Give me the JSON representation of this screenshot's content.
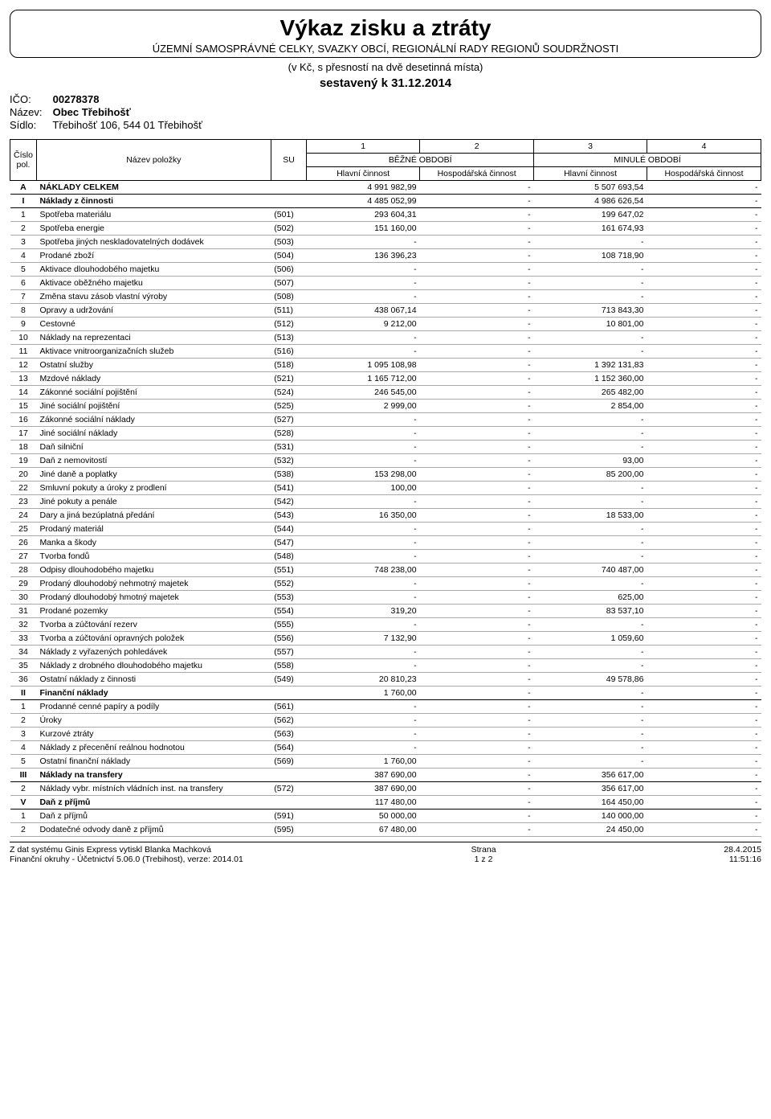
{
  "title": {
    "main": "Výkaz zisku a ztráty",
    "sub": "ÚZEMNÍ SAMOSPRÁVNÉ CELKY, SVAZKY OBCÍ, REGIONÁLNÍ RADY REGIONŮ SOUDRŽNOSTI",
    "precision": "(v Kč, s přesností na dvě desetinná místa)",
    "compiled": "sestavený k 31.12.2014"
  },
  "ident": {
    "ico_label": "IČO:",
    "ico": "00278378",
    "name_label": "Název:",
    "name": "Obec Třebihošť",
    "seat_label": "Sídlo:",
    "seat": "Třebihošť 106, 544 01 Třebihošť"
  },
  "header": {
    "cislo": "Číslo pol.",
    "nazev": "Název položky",
    "su": "SU",
    "c1": "1",
    "c2": "2",
    "c3": "3",
    "c4": "4",
    "bezne": "BĚŽNÉ OBDOBÍ",
    "minule": "MINULÉ OBDOBÍ",
    "hlavni": "Hlavní činnost",
    "hosp": "Hospodářská činnost"
  },
  "rows": [
    {
      "section": true,
      "num": "A",
      "name": "NÁKLADY CELKEM",
      "su": "",
      "v1": "4 991 982,99",
      "v2": "-",
      "v3": "5 507 693,54",
      "v4": "-"
    },
    {
      "section": true,
      "num": "I",
      "name": "Náklady z činnosti",
      "su": "",
      "v1": "4 485 052,99",
      "v2": "-",
      "v3": "4 986 626,54",
      "v4": "-"
    },
    {
      "num": "1",
      "name": "Spotřeba materiálu",
      "su": "(501)",
      "v1": "293 604,31",
      "v2": "-",
      "v3": "199 647,02",
      "v4": "-"
    },
    {
      "num": "2",
      "name": "Spotřeba energie",
      "su": "(502)",
      "v1": "151 160,00",
      "v2": "-",
      "v3": "161 674,93",
      "v4": "-"
    },
    {
      "num": "3",
      "name": "Spotřeba jiných neskladovatelných dodávek",
      "su": "(503)",
      "v1": "-",
      "v2": "-",
      "v3": "-",
      "v4": "-"
    },
    {
      "num": "4",
      "name": "Prodané zboží",
      "su": "(504)",
      "v1": "136 396,23",
      "v2": "-",
      "v3": "108 718,90",
      "v4": "-"
    },
    {
      "num": "5",
      "name": "Aktivace dlouhodobého majetku",
      "su": "(506)",
      "v1": "-",
      "v2": "-",
      "v3": "-",
      "v4": "-"
    },
    {
      "num": "6",
      "name": "Aktivace oběžného majetku",
      "su": "(507)",
      "v1": "-",
      "v2": "-",
      "v3": "-",
      "v4": "-"
    },
    {
      "num": "7",
      "name": "Změna stavu zásob vlastní výroby",
      "su": "(508)",
      "v1": "-",
      "v2": "-",
      "v3": "-",
      "v4": "-"
    },
    {
      "num": "8",
      "name": "Opravy a udržování",
      "su": "(511)",
      "v1": "438 067,14",
      "v2": "-",
      "v3": "713 843,30",
      "v4": "-"
    },
    {
      "num": "9",
      "name": "Cestovné",
      "su": "(512)",
      "v1": "9 212,00",
      "v2": "-",
      "v3": "10 801,00",
      "v4": "-"
    },
    {
      "num": "10",
      "name": "Náklady na reprezentaci",
      "su": "(513)",
      "v1": "-",
      "v2": "-",
      "v3": "-",
      "v4": "-"
    },
    {
      "num": "11",
      "name": "Aktivace vnitroorganizačních služeb",
      "su": "(516)",
      "v1": "-",
      "v2": "-",
      "v3": "-",
      "v4": "-"
    },
    {
      "num": "12",
      "name": "Ostatní služby",
      "su": "(518)",
      "v1": "1 095 108,98",
      "v2": "-",
      "v3": "1 392 131,83",
      "v4": "-"
    },
    {
      "num": "13",
      "name": "Mzdové náklady",
      "su": "(521)",
      "v1": "1 165 712,00",
      "v2": "-",
      "v3": "1 152 360,00",
      "v4": "-"
    },
    {
      "num": "14",
      "name": "Zákonné sociální pojištění",
      "su": "(524)",
      "v1": "246 545,00",
      "v2": "-",
      "v3": "265 482,00",
      "v4": "-"
    },
    {
      "num": "15",
      "name": "Jiné sociální pojištění",
      "su": "(525)",
      "v1": "2 999,00",
      "v2": "-",
      "v3": "2 854,00",
      "v4": "-"
    },
    {
      "num": "16",
      "name": "Zákonné sociální náklady",
      "su": "(527)",
      "v1": "-",
      "v2": "-",
      "v3": "-",
      "v4": "-"
    },
    {
      "num": "17",
      "name": "Jiné sociální náklady",
      "su": "(528)",
      "v1": "-",
      "v2": "-",
      "v3": "-",
      "v4": "-"
    },
    {
      "num": "18",
      "name": "Daň silniční",
      "su": "(531)",
      "v1": "-",
      "v2": "-",
      "v3": "-",
      "v4": "-"
    },
    {
      "num": "19",
      "name": "Daň z nemovitostí",
      "su": "(532)",
      "v1": "-",
      "v2": "-",
      "v3": "93,00",
      "v4": "-"
    },
    {
      "num": "20",
      "name": "Jiné daně a poplatky",
      "su": "(538)",
      "v1": "153 298,00",
      "v2": "-",
      "v3": "85 200,00",
      "v4": "-"
    },
    {
      "num": "22",
      "name": "Smluvní pokuty a úroky z prodlení",
      "su": "(541)",
      "v1": "100,00",
      "v2": "-",
      "v3": "-",
      "v4": "-"
    },
    {
      "num": "23",
      "name": "Jiné pokuty a penále",
      "su": "(542)",
      "v1": "-",
      "v2": "-",
      "v3": "-",
      "v4": "-"
    },
    {
      "num": "24",
      "name": "Dary a jiná bezúplatná předání",
      "su": "(543)",
      "v1": "16 350,00",
      "v2": "-",
      "v3": "18 533,00",
      "v4": "-"
    },
    {
      "num": "25",
      "name": "Prodaný materiál",
      "su": "(544)",
      "v1": "-",
      "v2": "-",
      "v3": "-",
      "v4": "-"
    },
    {
      "num": "26",
      "name": "Manka a škody",
      "su": "(547)",
      "v1": "-",
      "v2": "-",
      "v3": "-",
      "v4": "-"
    },
    {
      "num": "27",
      "name": "Tvorba fondů",
      "su": "(548)",
      "v1": "-",
      "v2": "-",
      "v3": "-",
      "v4": "-"
    },
    {
      "num": "28",
      "name": "Odpisy dlouhodobého majetku",
      "su": "(551)",
      "v1": "748 238,00",
      "v2": "-",
      "v3": "740 487,00",
      "v4": "-"
    },
    {
      "num": "29",
      "name": "Prodaný dlouhodobý nehmotný majetek",
      "su": "(552)",
      "v1": "-",
      "v2": "-",
      "v3": "-",
      "v4": "-"
    },
    {
      "num": "30",
      "name": "Prodaný dlouhodobý hmotný majetek",
      "su": "(553)",
      "v1": "-",
      "v2": "-",
      "v3": "625,00",
      "v4": "-"
    },
    {
      "num": "31",
      "name": "Prodané pozemky",
      "su": "(554)",
      "v1": "319,20",
      "v2": "-",
      "v3": "83 537,10",
      "v4": "-"
    },
    {
      "num": "32",
      "name": "Tvorba a zúčtování rezerv",
      "su": "(555)",
      "v1": "-",
      "v2": "-",
      "v3": "-",
      "v4": "-"
    },
    {
      "num": "33",
      "name": "Tvorba a zúčtování opravných položek",
      "su": "(556)",
      "v1": "7 132,90",
      "v2": "-",
      "v3": "1 059,60",
      "v4": "-"
    },
    {
      "num": "34",
      "name": "Náklady z vyřazených pohledávek",
      "su": "(557)",
      "v1": "-",
      "v2": "-",
      "v3": "-",
      "v4": "-"
    },
    {
      "num": "35",
      "name": "Náklady z drobného dlouhodobého majetku",
      "su": "(558)",
      "v1": "-",
      "v2": "-",
      "v3": "-",
      "v4": "-"
    },
    {
      "num": "36",
      "name": "Ostatní náklady z činnosti",
      "su": "(549)",
      "v1": "20 810,23",
      "v2": "-",
      "v3": "49 578,86",
      "v4": "-"
    },
    {
      "section": true,
      "num": "II",
      "name": "Finanční náklady",
      "su": "",
      "v1": "1 760,00",
      "v2": "-",
      "v3": "-",
      "v4": "-"
    },
    {
      "num": "1",
      "name": "Prodanné cenné papíry a podíly",
      "su": "(561)",
      "v1": "-",
      "v2": "-",
      "v3": "-",
      "v4": "-"
    },
    {
      "num": "2",
      "name": "Úroky",
      "su": "(562)",
      "v1": "-",
      "v2": "-",
      "v3": "-",
      "v4": "-"
    },
    {
      "num": "3",
      "name": "Kurzové ztráty",
      "su": "(563)",
      "v1": "-",
      "v2": "-",
      "v3": "-",
      "v4": "-"
    },
    {
      "num": "4",
      "name": "Náklady z přecenění reálnou hodnotou",
      "su": "(564)",
      "v1": "-",
      "v2": "-",
      "v3": "-",
      "v4": "-"
    },
    {
      "num": "5",
      "name": "Ostatní finanční náklady",
      "su": "(569)",
      "v1": "1 760,00",
      "v2": "-",
      "v3": "-",
      "v4": "-"
    },
    {
      "section": true,
      "num": "III",
      "name": "Náklady na transfery",
      "su": "",
      "v1": "387 690,00",
      "v2": "-",
      "v3": "356 617,00",
      "v4": "-"
    },
    {
      "num": "2",
      "name": "Náklady vybr. místních vládních inst. na transfery",
      "su": "(572)",
      "v1": "387 690,00",
      "v2": "-",
      "v3": "356 617,00",
      "v4": "-"
    },
    {
      "section": true,
      "num": "V",
      "name": "Daň z příjmů",
      "su": "",
      "v1": "117 480,00",
      "v2": "-",
      "v3": "164 450,00",
      "v4": "-"
    },
    {
      "num": "1",
      "name": "Daň z příjmů",
      "su": "(591)",
      "v1": "50 000,00",
      "v2": "-",
      "v3": "140 000,00",
      "v4": "-"
    },
    {
      "num": "2",
      "name": "Dodatečné odvody daně z příjmů",
      "su": "(595)",
      "v1": "67 480,00",
      "v2": "-",
      "v3": "24 450,00",
      "v4": "-"
    }
  ],
  "footer": {
    "left1": "Z dat systému Ginis Express vytiskl Blanka Machková",
    "left2": "Finanční okruhy - Účetnictví 5.06.0 (Trebihost), verze: 2014.01",
    "mid1": "Strana",
    "mid2": "1 z 2",
    "right1": "28.4.2015",
    "right2": "11:51:16"
  }
}
